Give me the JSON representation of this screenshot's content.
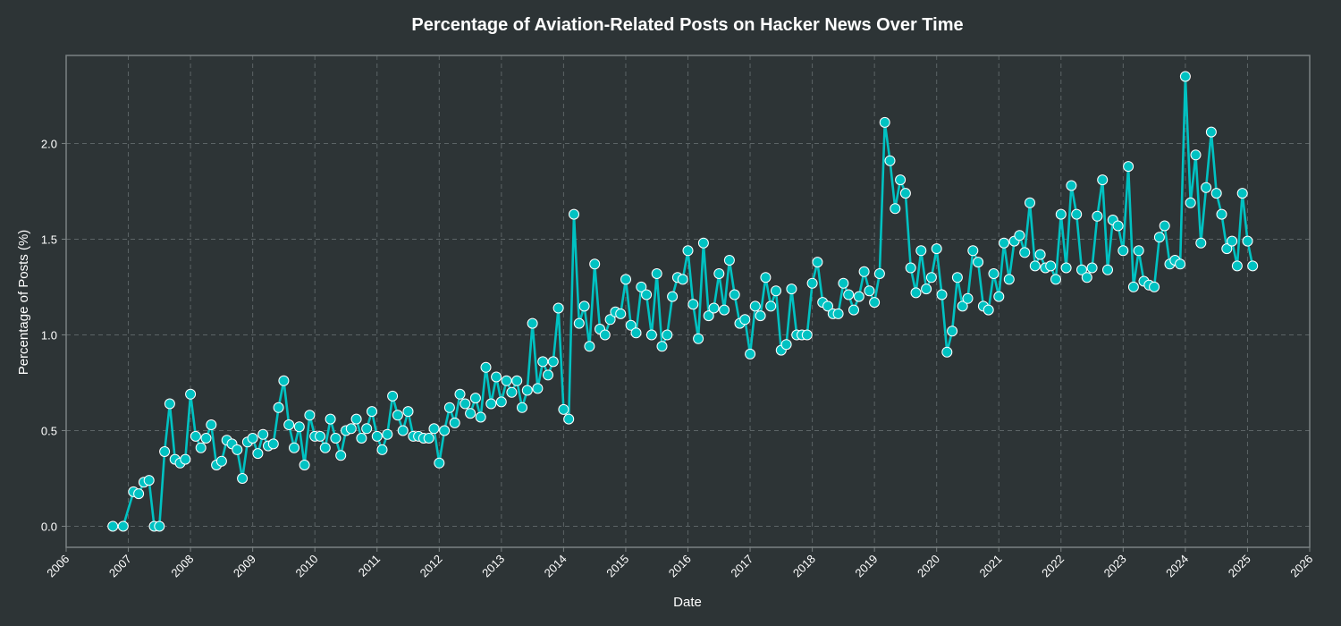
{
  "chart_data": {
    "type": "line",
    "title": "Percentage of Aviation-Related Posts on Hacker News Over Time",
    "xlabel": "Date",
    "ylabel": "Percentage of Posts (%)",
    "xlim": [
      "2006-01",
      "2026-01"
    ],
    "ylim": [
      -0.11,
      2.46
    ],
    "x_ticks": [
      "2006",
      "2007",
      "2008",
      "2009",
      "2010",
      "2011",
      "2012",
      "2013",
      "2014",
      "2015",
      "2016",
      "2017",
      "2018",
      "2019",
      "2020",
      "2021",
      "2022",
      "2023",
      "2024",
      "2025",
      "2026"
    ],
    "y_ticks": [
      "0.0",
      "0.5",
      "1.0",
      "1.5",
      "2.0"
    ],
    "grid": true,
    "series": [
      {
        "x": [
          "2006-10",
          "2006-12",
          "2007-02",
          "2007-03",
          "2007-04",
          "2007-05",
          "2007-06",
          "2007-07",
          "2007-08",
          "2007-09",
          "2007-10",
          "2007-11",
          "2007-12",
          "2008-01",
          "2008-02",
          "2008-03",
          "2008-04",
          "2008-05",
          "2008-06",
          "2008-07",
          "2008-08",
          "2008-09",
          "2008-10",
          "2008-11",
          "2008-12",
          "2009-01",
          "2009-02",
          "2009-03",
          "2009-04",
          "2009-05",
          "2009-06",
          "2009-07",
          "2009-08",
          "2009-09",
          "2009-10",
          "2009-11",
          "2009-12",
          "2010-01",
          "2010-02",
          "2010-03",
          "2010-04",
          "2010-05",
          "2010-06",
          "2010-07",
          "2010-08",
          "2010-09",
          "2010-10",
          "2010-11",
          "2010-12",
          "2011-01",
          "2011-02",
          "2011-03",
          "2011-04",
          "2011-05",
          "2011-06",
          "2011-07",
          "2011-08",
          "2011-09",
          "2011-10",
          "2011-11",
          "2011-12",
          "2012-01",
          "2012-02",
          "2012-03",
          "2012-04",
          "2012-05",
          "2012-06",
          "2012-07",
          "2012-08",
          "2012-09",
          "2012-10",
          "2012-11",
          "2012-12",
          "2013-01",
          "2013-02",
          "2013-03",
          "2013-04",
          "2013-05",
          "2013-06",
          "2013-07",
          "2013-08",
          "2013-09",
          "2013-10",
          "2013-11",
          "2013-12",
          "2014-01",
          "2014-02",
          "2014-03",
          "2014-04",
          "2014-05",
          "2014-06",
          "2014-07",
          "2014-08",
          "2014-09",
          "2014-10",
          "2014-11",
          "2014-12",
          "2015-01",
          "2015-02",
          "2015-03",
          "2015-04",
          "2015-05",
          "2015-06",
          "2015-07",
          "2015-08",
          "2015-09",
          "2015-10",
          "2015-11",
          "2015-12",
          "2016-01",
          "2016-02",
          "2016-03",
          "2016-04",
          "2016-05",
          "2016-06",
          "2016-07",
          "2016-08",
          "2016-09",
          "2016-10",
          "2016-11",
          "2016-12",
          "2017-01",
          "2017-02",
          "2017-03",
          "2017-04",
          "2017-05",
          "2017-06",
          "2017-07",
          "2017-08",
          "2017-09",
          "2017-10",
          "2017-11",
          "2017-12",
          "2018-01",
          "2018-02",
          "2018-03",
          "2018-04",
          "2018-05",
          "2018-06",
          "2018-07",
          "2018-08",
          "2018-09",
          "2018-10",
          "2018-11",
          "2018-12",
          "2019-01",
          "2019-02",
          "2019-03",
          "2019-04",
          "2019-05",
          "2019-06",
          "2019-07",
          "2019-08",
          "2019-09",
          "2019-10",
          "2019-11",
          "2019-12",
          "2020-01",
          "2020-02",
          "2020-03",
          "2020-04",
          "2020-05",
          "2020-06",
          "2020-07",
          "2020-08",
          "2020-09",
          "2020-10",
          "2020-11",
          "2020-12",
          "2021-01",
          "2021-02",
          "2021-03",
          "2021-04",
          "2021-05",
          "2021-06",
          "2021-07",
          "2021-08",
          "2021-09",
          "2021-10",
          "2021-11",
          "2021-12",
          "2022-01",
          "2022-02",
          "2022-03",
          "2022-04",
          "2022-05",
          "2022-06",
          "2022-07",
          "2022-08",
          "2022-09",
          "2022-10",
          "2022-11",
          "2022-12",
          "2023-01",
          "2023-02",
          "2023-03",
          "2023-04",
          "2023-05",
          "2023-06",
          "2023-07",
          "2023-08",
          "2023-09",
          "2023-10",
          "2023-11",
          "2023-12",
          "2024-01",
          "2024-02",
          "2024-03",
          "2024-04",
          "2024-05",
          "2024-06",
          "2024-07",
          "2024-08",
          "2024-09",
          "2024-10",
          "2024-11",
          "2024-12",
          "2025-01",
          "2025-02"
        ],
        "values": [
          0.0,
          0.0,
          0.18,
          0.17,
          0.23,
          0.24,
          0.0,
          0.0,
          0.39,
          0.64,
          0.35,
          0.33,
          0.35,
          0.69,
          0.47,
          0.41,
          0.46,
          0.53,
          0.32,
          0.34,
          0.45,
          0.43,
          0.4,
          0.25,
          0.44,
          0.46,
          0.38,
          0.48,
          0.42,
          0.43,
          0.62,
          0.76,
          0.53,
          0.41,
          0.52,
          0.32,
          0.58,
          0.47,
          0.47,
          0.41,
          0.56,
          0.46,
          0.37,
          0.5,
          0.51,
          0.56,
          0.46,
          0.51,
          0.6,
          0.47,
          0.4,
          0.48,
          0.68,
          0.58,
          0.5,
          0.6,
          0.47,
          0.47,
          0.46,
          0.46,
          0.51,
          0.33,
          0.5,
          0.62,
          0.54,
          0.69,
          0.64,
          0.59,
          0.67,
          0.57,
          0.83,
          0.64,
          0.78,
          0.65,
          0.76,
          0.7,
          0.76,
          0.62,
          0.71,
          1.06,
          0.72,
          0.86,
          0.79,
          0.86,
          1.14,
          0.61,
          0.56,
          1.63,
          1.06,
          1.15,
          0.94,
          1.37,
          1.03,
          1.0,
          1.08,
          1.12,
          1.11,
          1.29,
          1.05,
          1.01,
          1.25,
          1.21,
          1.0,
          1.32,
          0.94,
          1.0,
          1.2,
          1.3,
          1.29,
          1.44,
          1.16,
          0.98,
          1.48,
          1.1,
          1.14,
          1.32,
          1.13,
          1.39,
          1.21,
          1.06,
          1.08,
          0.9,
          1.15,
          1.1,
          1.3,
          1.15,
          1.23,
          0.92,
          0.95,
          1.24,
          1.0,
          1.0,
          1.0,
          1.27,
          1.38,
          1.17,
          1.15,
          1.11,
          1.11,
          1.27,
          1.21,
          1.13,
          1.2,
          1.33,
          1.23,
          1.17,
          1.32,
          2.11,
          1.91,
          1.66,
          1.81,
          1.74,
          1.35,
          1.22,
          1.44,
          1.24,
          1.3,
          1.45,
          1.21,
          0.91,
          1.02,
          1.3,
          1.15,
          1.19,
          1.44,
          1.38,
          1.15,
          1.13,
          1.32,
          1.2,
          1.48,
          1.29,
          1.49,
          1.52,
          1.43,
          1.69,
          1.36,
          1.42,
          1.35,
          1.36,
          1.29,
          1.63,
          1.35,
          1.78,
          1.63,
          1.34,
          1.3,
          1.35,
          1.62,
          1.81,
          1.34,
          1.6,
          1.57,
          1.44,
          1.88,
          1.25,
          1.44,
          1.28,
          1.26,
          1.25,
          1.51,
          1.57,
          1.37,
          1.39,
          1.37,
          2.35,
          1.69,
          1.94,
          1.48,
          1.77,
          2.06,
          1.74,
          1.63,
          1.45,
          1.49,
          1.36,
          1.74,
          1.49,
          1.36
        ]
      }
    ],
    "colors": {
      "line": "#00c2c2",
      "marker_fill": "#00c2c2",
      "marker_edge": "#ffffff",
      "grid": "#5c6466",
      "axes_edge": "#7b8283",
      "background": "#2d3436"
    }
  }
}
